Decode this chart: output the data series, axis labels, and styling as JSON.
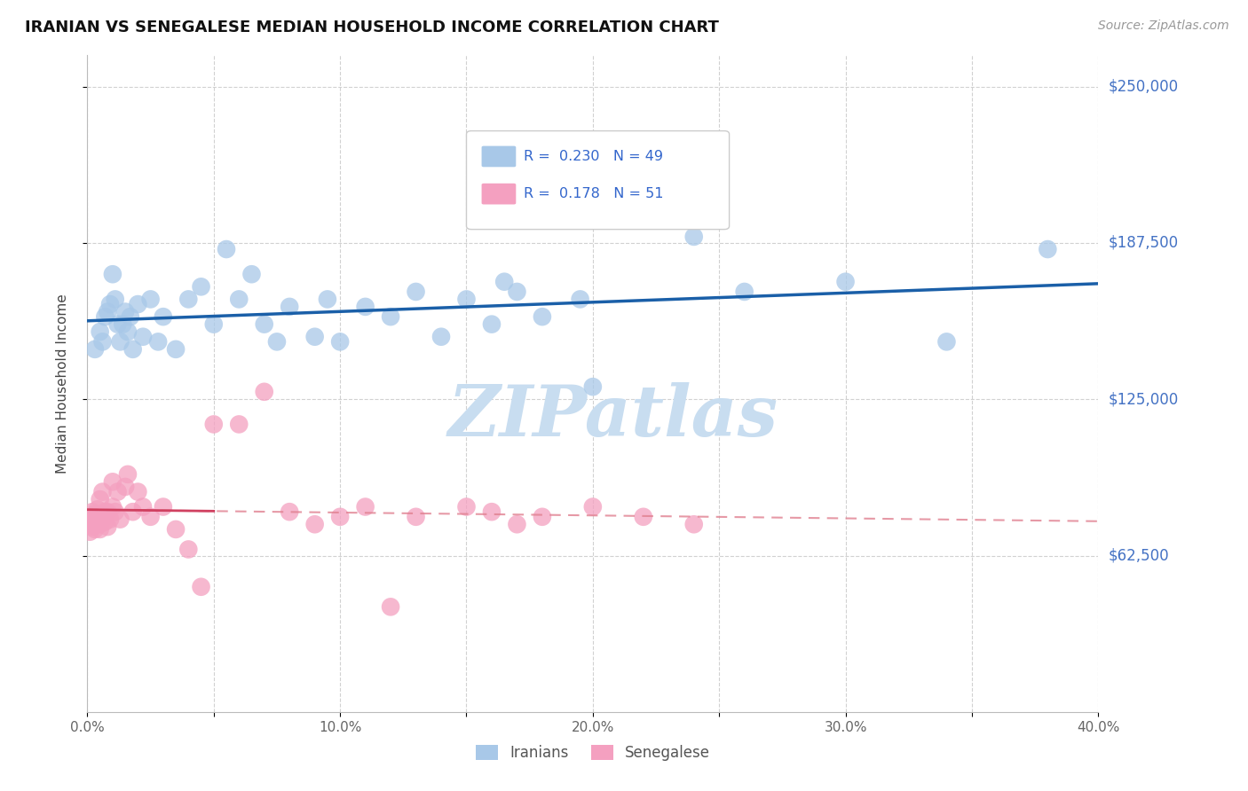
{
  "title": "IRANIAN VS SENEGALESE MEDIAN HOUSEHOLD INCOME CORRELATION CHART",
  "source": "Source: ZipAtlas.com",
  "ylabel": "Median Household Income",
  "xlim": [
    0.0,
    0.4
  ],
  "ylim": [
    0,
    262500
  ],
  "yticks": [
    62500,
    125000,
    187500,
    250000
  ],
  "ytick_labels": [
    "$62,500",
    "$125,000",
    "$187,500",
    "$250,000"
  ],
  "xticks": [
    0.0,
    0.05,
    0.1,
    0.15,
    0.2,
    0.25,
    0.3,
    0.35,
    0.4
  ],
  "xtick_labels": [
    "0.0%",
    "",
    "10.0%",
    "",
    "20.0%",
    "",
    "30.0%",
    "",
    "40.0%"
  ],
  "iranian_color": "#a8c8e8",
  "senegalese_color": "#f4a0c0",
  "iranian_line_color": "#1a5fa8",
  "senegalese_line_color": "#d04060",
  "senegalese_dash_color": "#e08090",
  "R_iranian": 0.23,
  "N_iranian": 49,
  "R_senegalese": 0.178,
  "N_senegalese": 51,
  "watermark": "ZIPatlas",
  "watermark_color": "#c8ddf0",
  "iranian_x": [
    0.003,
    0.005,
    0.006,
    0.007,
    0.008,
    0.009,
    0.01,
    0.011,
    0.012,
    0.013,
    0.014,
    0.015,
    0.016,
    0.017,
    0.018,
    0.02,
    0.022,
    0.025,
    0.028,
    0.03,
    0.035,
    0.04,
    0.045,
    0.05,
    0.055,
    0.06,
    0.065,
    0.07,
    0.075,
    0.08,
    0.09,
    0.095,
    0.1,
    0.11,
    0.12,
    0.13,
    0.14,
    0.15,
    0.16,
    0.165,
    0.17,
    0.18,
    0.195,
    0.2,
    0.24,
    0.26,
    0.3,
    0.34,
    0.38
  ],
  "iranian_y": [
    145000,
    152000,
    148000,
    158000,
    160000,
    163000,
    175000,
    165000,
    155000,
    148000,
    155000,
    160000,
    152000,
    158000,
    145000,
    163000,
    150000,
    165000,
    148000,
    158000,
    145000,
    165000,
    170000,
    155000,
    185000,
    165000,
    175000,
    155000,
    148000,
    162000,
    150000,
    165000,
    148000,
    162000,
    158000,
    168000,
    150000,
    165000,
    155000,
    172000,
    168000,
    158000,
    165000,
    130000,
    190000,
    168000,
    172000,
    148000,
    185000
  ],
  "senegalese_x": [
    0.001,
    0.001,
    0.002,
    0.002,
    0.002,
    0.003,
    0.003,
    0.003,
    0.004,
    0.004,
    0.005,
    0.005,
    0.005,
    0.006,
    0.006,
    0.007,
    0.007,
    0.008,
    0.008,
    0.009,
    0.01,
    0.01,
    0.011,
    0.012,
    0.013,
    0.015,
    0.016,
    0.018,
    0.02,
    0.022,
    0.025,
    0.03,
    0.035,
    0.04,
    0.045,
    0.05,
    0.06,
    0.07,
    0.08,
    0.09,
    0.1,
    0.11,
    0.12,
    0.13,
    0.15,
    0.16,
    0.17,
    0.18,
    0.2,
    0.22,
    0.24
  ],
  "senegalese_y": [
    75000,
    72000,
    78000,
    80000,
    74000,
    76000,
    73000,
    79000,
    77000,
    81000,
    85000,
    75000,
    73000,
    77000,
    88000,
    80000,
    76000,
    74000,
    80000,
    77000,
    82000,
    92000,
    80000,
    88000,
    77000,
    90000,
    95000,
    80000,
    88000,
    82000,
    78000,
    82000,
    73000,
    65000,
    50000,
    115000,
    115000,
    128000,
    80000,
    75000,
    78000,
    82000,
    42000,
    78000,
    82000,
    80000,
    75000,
    78000,
    82000,
    78000,
    75000
  ]
}
